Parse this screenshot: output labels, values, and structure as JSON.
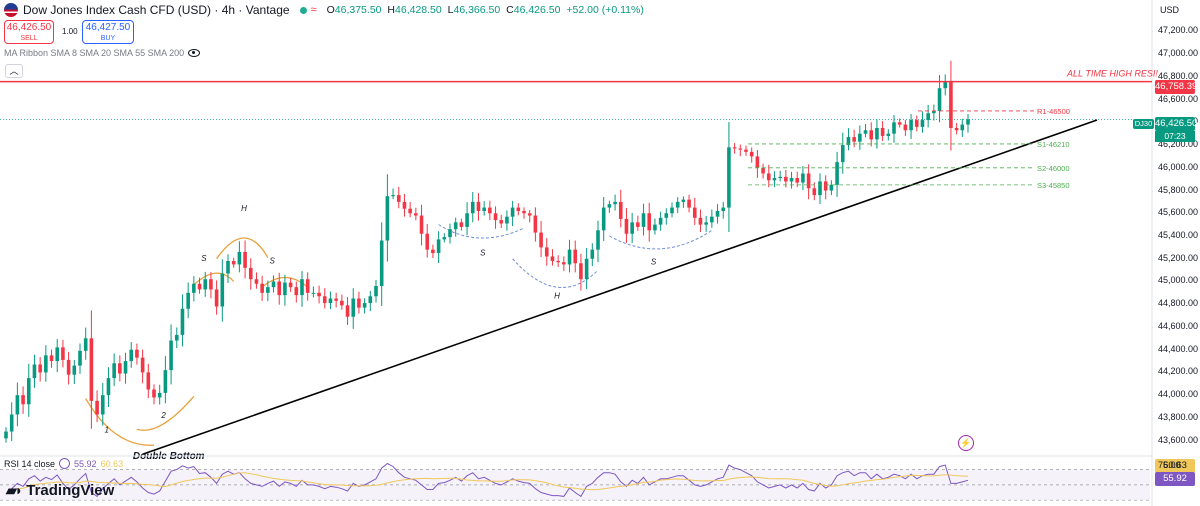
{
  "header": {
    "title": "Dow Jones Index Cash CFD (USD) · 4h · Vantage",
    "ohlc": [
      {
        "k": "O",
        "v": "46,375.50"
      },
      {
        "k": "H",
        "v": "46,428.50"
      },
      {
        "k": "L",
        "v": "46,366.50"
      },
      {
        "k": "C",
        "v": "46,426.50"
      }
    ],
    "change": "+52.00 (+0.11%)"
  },
  "trade": {
    "sell_price": "46,426.50",
    "sell_label": "SELL",
    "spread": "1.00",
    "buy_price": "46,427.50",
    "buy_label": "BUY"
  },
  "indicator_label": "MA Ribbon SMA 8 SMA 20 SMA 55 SMA 200",
  "currency": "USD",
  "symbol_tag": "DJ30",
  "countdown": "07:23",
  "colors": {
    "up": "#089981",
    "down": "#f23645",
    "trend": "#000000",
    "resistance": "#f23645",
    "support": "#4caf50",
    "rsi": "#7e57c2",
    "rsi_ma": "#f0c85a",
    "pattern": "#e8a13a",
    "pattern_dashed": "#6e8ed8"
  },
  "chart_data": {
    "type": "candlestick",
    "timeframe": "4h",
    "ylim": [
      43500,
      47300
    ],
    "yticks": [
      "47,200.00",
      "47,000.00",
      "46,800.00",
      "46,600.00",
      "46,400.00",
      "46,200.00",
      "46,000.00",
      "45,800.00",
      "45,600.00",
      "45,400.00",
      "45,200.00",
      "45,000.00",
      "44,800.00",
      "44,600.00",
      "44,400.00",
      "44,200.00",
      "44,000.00",
      "43,800.00",
      "43,600.00"
    ],
    "closes": [
      43680,
      43830,
      44000,
      43920,
      44150,
      44270,
      44200,
      44350,
      44300,
      44420,
      44310,
      44180,
      44260,
      44390,
      44500,
      43950,
      43830,
      44000,
      44150,
      44280,
      44190,
      44300,
      44400,
      44330,
      44200,
      44050,
      43980,
      44020,
      44220,
      44480,
      44530,
      44760,
      44900,
      44980,
      44930,
      45020,
      44930,
      44780,
      45070,
      45180,
      45150,
      45260,
      45120,
      45020,
      44980,
      44900,
      44950,
      45000,
      44880,
      44990,
      44950,
      44880,
      45020,
      44900,
      44900,
      44870,
      44810,
      44850,
      44830,
      44790,
      44690,
      44850,
      44770,
      44810,
      44870,
      44960,
      45360,
      45750,
      45760,
      45700,
      45640,
      45600,
      45580,
      45420,
      45280,
      45250,
      45370,
      45390,
      45460,
      45520,
      45480,
      45600,
      45700,
      45620,
      45650,
      45600,
      45540,
      45510,
      45570,
      45650,
      45620,
      45600,
      45580,
      45430,
      45300,
      45220,
      45180,
      45170,
      45150,
      45280,
      45160,
      45020,
      45200,
      45280,
      45450,
      45650,
      45680,
      45700,
      45550,
      45420,
      45520,
      45480,
      45600,
      45450,
      45500,
      45560,
      45600,
      45650,
      45700,
      45720,
      45650,
      45560,
      45500,
      45520,
      45570,
      45620,
      45650,
      46180,
      46170,
      46160,
      46140,
      46100,
      46000,
      45950,
      45890,
      45910,
      45920,
      45880,
      45910,
      45870,
      45950,
      45820,
      45760,
      45880,
      45800,
      45850,
      46050,
      46200,
      46270,
      46230,
      46300,
      46330,
      46250,
      46350,
      46280,
      46300,
      46400,
      46380,
      46330,
      46420,
      46360,
      46420,
      46480,
      46500,
      46700,
      46758,
      46350,
      46330,
      46380,
      46426
    ],
    "annotations": {
      "ath_label": "ALL TIME HIGH RESI!",
      "ath_value": 46758.39,
      "ath_tag": "46,758.39",
      "current_tag": "46,426.50",
      "levels": [
        {
          "label": "R1-46500",
          "value": 46500
        },
        {
          "label": "S1-46210",
          "value": 46210
        },
        {
          "label": "S2-46000",
          "value": 46000
        },
        {
          "label": "S3-45850",
          "value": 45850
        }
      ],
      "pattern_labels": [
        {
          "text": "1"
        },
        {
          "text": "2"
        },
        {
          "text": "Double Bottom"
        },
        {
          "text": "S"
        },
        {
          "text": "H"
        },
        {
          "text": "S"
        },
        {
          "text": "S"
        },
        {
          "text": "H"
        },
        {
          "text": "S"
        }
      ]
    },
    "rsi": {
      "label": "RSI 14 close",
      "value": "55.92",
      "ma_value": "60.63",
      "levels": [
        70,
        50,
        30
      ],
      "series": [
        38,
        45,
        52,
        48,
        58,
        62,
        55,
        60,
        57,
        63,
        52,
        44,
        50,
        58,
        65,
        40,
        35,
        45,
        52,
        58,
        50,
        55,
        60,
        54,
        46,
        40,
        38,
        42,
        55,
        68,
        70,
        75,
        72,
        74,
        65,
        66,
        60,
        52,
        64,
        68,
        64,
        66,
        58,
        52,
        50,
        48,
        52,
        55,
        48,
        54,
        52,
        48,
        56,
        50,
        50,
        48,
        45,
        48,
        47,
        45,
        42,
        52,
        48,
        50,
        54,
        58,
        72,
        78,
        74,
        66,
        60,
        58,
        56,
        50,
        44,
        44,
        52,
        53,
        56,
        60,
        55,
        62,
        66,
        58,
        60,
        56,
        52,
        50,
        54,
        58,
        55,
        53,
        52,
        45,
        40,
        38,
        36,
        36,
        35,
        46,
        40,
        35,
        48,
        52,
        60,
        66,
        66,
        64,
        54,
        48,
        56,
        52,
        60,
        50,
        54,
        58,
        58,
        60,
        62,
        62,
        56,
        50,
        48,
        50,
        54,
        58,
        60,
        76,
        72,
        70,
        66,
        62,
        54,
        50,
        46,
        48,
        50,
        46,
        50,
        46,
        52,
        44,
        42,
        52,
        46,
        50,
        62,
        66,
        68,
        62,
        66,
        66,
        58,
        64,
        58,
        60,
        64,
        62,
        58,
        64,
        58,
        62,
        64,
        64,
        74,
        76,
        52,
        52,
        54,
        56
      ]
    }
  }
}
